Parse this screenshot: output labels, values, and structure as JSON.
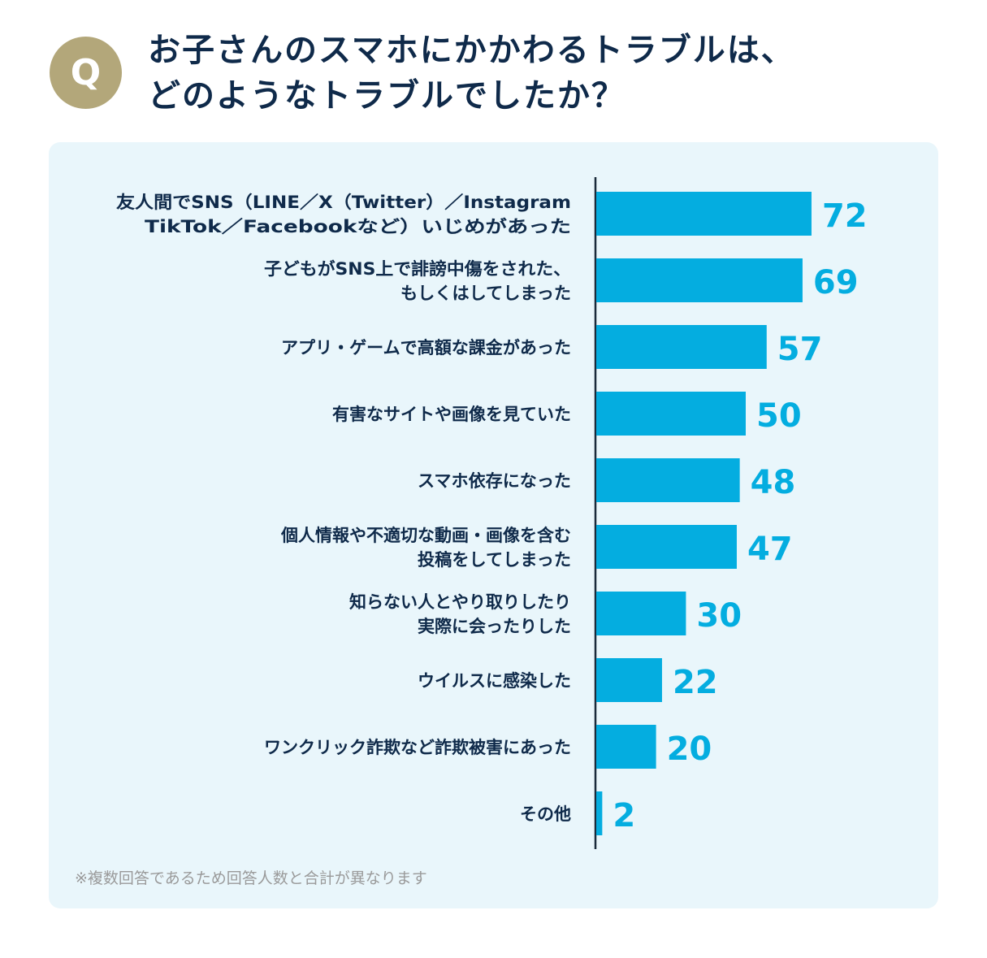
{
  "badge": "Q",
  "title": {
    "line1": "お子さんのスマホにかかわるトラブルは、",
    "line2": "どのようなトラブルでしたか？"
  },
  "note": "※複数回答であるため回答人数と合計が異なります",
  "colors": {
    "bar": "#04ade0",
    "value_text": "#04ade0",
    "label_text": "#0f2a4a",
    "badge": "#b3a77a",
    "panel": "#e9f6fb",
    "axis": "#1a2a3a"
  },
  "chart_data": {
    "type": "bar",
    "orientation": "horizontal",
    "categories": [
      [
        "友人間でSNS（LINE／X（Twitter）／Instagram",
        "TikTok／Facebookなど）いじめがあった"
      ],
      [
        "子どもがSNS上で誹謗中傷をされた、",
        "もしくはしてしまった"
      ],
      [
        "アプリ・ゲームで高額な課金があった"
      ],
      [
        "有害なサイトや画像を見ていた"
      ],
      [
        "スマホ依存になった"
      ],
      [
        "個人情報や不適切な動画・画像を含む",
        "投稿をしてしまった"
      ],
      [
        "知らない人とやり取りしたり",
        "実際に会ったりした"
      ],
      [
        "ウイルスに感染した"
      ],
      [
        "ワンクリック詐欺など詐欺被害にあった"
      ],
      [
        "その他"
      ]
    ],
    "values": [
      72,
      69,
      57,
      50,
      48,
      47,
      30,
      22,
      20,
      2
    ],
    "data_labels": true
  }
}
